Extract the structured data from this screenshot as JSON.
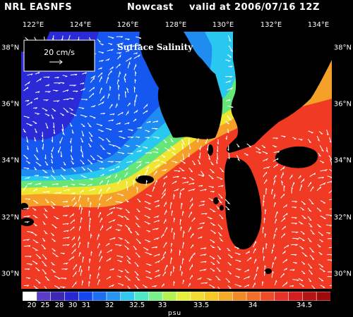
{
  "header": {
    "model": "NRL EASNFS",
    "product": "Nowcast",
    "valid": "valid at 2006/07/16 12Z"
  },
  "map": {
    "field_label": "Surface Salinity",
    "vector_scale_label": "20 cm/s",
    "lon_labels": [
      "122°E",
      "124°E",
      "126°E",
      "128°E",
      "130°E",
      "132°E",
      "134°E"
    ],
    "lat_labels": [
      "38°N",
      "36°N",
      "34°N",
      "32°N",
      "30°N"
    ]
  },
  "colorbar": {
    "tick_labels": [
      "20",
      "25",
      "28",
      "30",
      "31",
      "32",
      "32.5",
      "33",
      "33.5",
      "34",
      "34.5"
    ],
    "unit": "psu",
    "colors": [
      "#ffffff",
      "#5a3cc8",
      "#3c28b4",
      "#2828d2",
      "#1446f0",
      "#1e6ef0",
      "#2896f0",
      "#32c8f0",
      "#50e6c8",
      "#78f08c",
      "#b4f050",
      "#e6f03c",
      "#f0dc32",
      "#f5c828",
      "#f5aa28",
      "#f08c28",
      "#f06e28",
      "#f04b28",
      "#e63228",
      "#d21e1e",
      "#b41414",
      "#a00a0a"
    ]
  },
  "colors": {
    "land": "#000000",
    "vectors": "#ffffff"
  }
}
